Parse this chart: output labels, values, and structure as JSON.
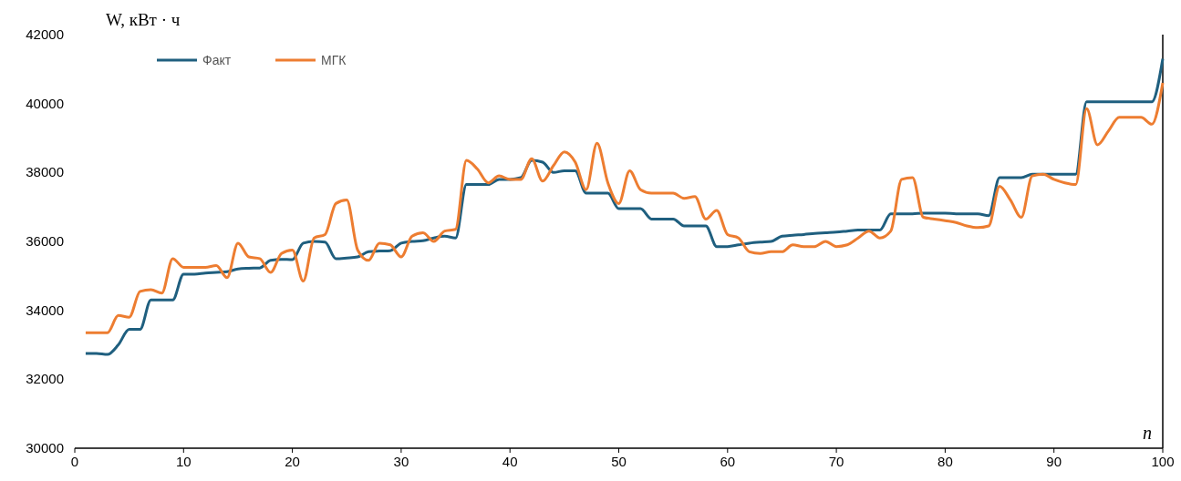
{
  "chart_data": {
    "type": "line",
    "xlabel": "n",
    "ylabel": "W, кВт · ч",
    "x": [
      1,
      2,
      3,
      4,
      5,
      6,
      7,
      8,
      9,
      10,
      11,
      12,
      13,
      14,
      15,
      16,
      17,
      18,
      19,
      20,
      21,
      22,
      23,
      24,
      25,
      26,
      27,
      28,
      29,
      30,
      31,
      32,
      33,
      34,
      35,
      36,
      37,
      38,
      39,
      40,
      41,
      42,
      43,
      44,
      45,
      46,
      47,
      48,
      49,
      50,
      51,
      52,
      53,
      54,
      55,
      56,
      57,
      58,
      59,
      60,
      61,
      62,
      63,
      64,
      65,
      66,
      67,
      68,
      69,
      70,
      71,
      72,
      73,
      74,
      75,
      76,
      77,
      78,
      79,
      80,
      81,
      82,
      83,
      84,
      85,
      86,
      87,
      88,
      89,
      90,
      91,
      92,
      93,
      94,
      95,
      96,
      97,
      98,
      99,
      100
    ],
    "series": [
      {
        "name": "Факт",
        "color": "#1f5f7f",
        "values": [
          32750,
          32750,
          32720,
          33000,
          33450,
          33450,
          34300,
          34300,
          34300,
          35050,
          35050,
          35080,
          35100,
          35120,
          35200,
          35220,
          35230,
          35450,
          35480,
          35470,
          35950,
          36000,
          35980,
          35500,
          35520,
          35550,
          35700,
          35720,
          35730,
          35950,
          36000,
          36020,
          36100,
          36150,
          36100,
          37650,
          37650,
          37650,
          37800,
          37800,
          37850,
          38350,
          38300,
          38000,
          38050,
          38050,
          37400,
          37400,
          37400,
          36950,
          36950,
          36950,
          36650,
          36650,
          36650,
          36450,
          36450,
          36450,
          35850,
          35850,
          35900,
          35950,
          35980,
          36000,
          36150,
          36180,
          36200,
          36230,
          36250,
          36270,
          36300,
          36330,
          36330,
          36330,
          36800,
          36800,
          36800,
          36820,
          36820,
          36820,
          36800,
          36800,
          36800,
          36750,
          37850,
          37850,
          37850,
          37950,
          37950,
          37950,
          37950,
          37950,
          40050,
          40050,
          40050,
          40050,
          40050,
          40050,
          40050,
          41300
        ]
      },
      {
        "name": "МГК",
        "color": "#ed7d31",
        "values": [
          33350,
          33350,
          33350,
          33850,
          33800,
          34550,
          34600,
          34500,
          35500,
          35250,
          35250,
          35250,
          35300,
          34950,
          35950,
          35550,
          35500,
          35100,
          35650,
          35750,
          34850,
          36100,
          36200,
          37100,
          37200,
          35750,
          35450,
          35950,
          35900,
          35550,
          36150,
          36250,
          36000,
          36300,
          36350,
          38350,
          38100,
          37700,
          37900,
          37800,
          37800,
          38400,
          37750,
          38200,
          38600,
          38300,
          37500,
          38850,
          37700,
          37100,
          38050,
          37500,
          37400,
          37400,
          37400,
          37250,
          37300,
          36650,
          36900,
          36200,
          36100,
          35700,
          35650,
          35700,
          35700,
          35900,
          35850,
          35850,
          36000,
          35850,
          35900,
          36100,
          36300,
          36100,
          36300,
          37800,
          37850,
          36700,
          36650,
          36600,
          36550,
          36450,
          36400,
          36450,
          37600,
          37200,
          36700,
          37900,
          37950,
          37800,
          37700,
          37650,
          39850,
          38800,
          39200,
          39600,
          39600,
          39600,
          39400,
          40600
        ]
      }
    ],
    "xlim": [
      0,
      100
    ],
    "xticks": [
      0,
      10,
      20,
      30,
      40,
      50,
      60,
      70,
      80,
      90,
      100
    ],
    "ylim": [
      30000,
      42000
    ],
    "yticks": [
      30000,
      32000,
      34000,
      36000,
      38000,
      40000,
      42000
    ],
    "grid": false,
    "legend": "top left",
    "marker": "none",
    "line_style": "solid"
  }
}
